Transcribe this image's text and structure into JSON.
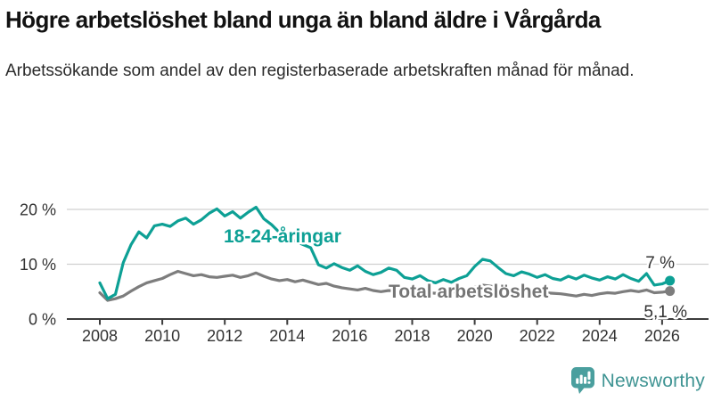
{
  "header": {
    "title": "Högre arbetslöshet bland unga än bland äldre i Vårgårda",
    "subtitle": "Arbetssökande som andel av den registerbaserade arbetskraften månad för månad."
  },
  "colors": {
    "accent_teal": "#0da095",
    "series_total_gray": "#7d7d7d",
    "axis": "#3c3c3c",
    "gridline": "#d0d0d0",
    "tick_label": "#333333",
    "end_label": "#333333",
    "logo_teal": "#4a9f9e",
    "logo_text_teal": "#3f9493",
    "background": "#ffffff"
  },
  "chart_data": {
    "type": "line",
    "title": "Högre arbetslöshet bland unga än bland äldre i Vårgårda",
    "subtitle": "Arbetssökande som andel av den registerbaserade arbetskraften månad för månad.",
    "x_unit": "decimal_year",
    "x": [
      2008.0,
      2008.25,
      2008.5,
      2008.75,
      2009.0,
      2009.25,
      2009.5,
      2009.75,
      2010.0,
      2010.25,
      2010.5,
      2010.75,
      2011.0,
      2011.25,
      2011.5,
      2011.75,
      2012.0,
      2012.25,
      2012.5,
      2012.75,
      2013.0,
      2013.25,
      2013.5,
      2013.75,
      2014.0,
      2014.25,
      2014.5,
      2014.75,
      2015.0,
      2015.25,
      2015.5,
      2015.75,
      2016.0,
      2016.25,
      2016.5,
      2016.75,
      2017.0,
      2017.25,
      2017.5,
      2017.75,
      2018.0,
      2018.25,
      2018.5,
      2018.75,
      2019.0,
      2019.25,
      2019.5,
      2019.75,
      2020.0,
      2020.25,
      2020.5,
      2020.75,
      2021.0,
      2021.25,
      2021.5,
      2021.75,
      2022.0,
      2022.25,
      2022.5,
      2022.75,
      2023.0,
      2023.25,
      2023.5,
      2023.75,
      2024.0,
      2024.25,
      2024.5,
      2024.75,
      2025.0,
      2025.25,
      2025.5,
      2025.75,
      2026.0,
      2026.25
    ],
    "series": [
      {
        "name": "18-24-åringar",
        "color": "#0da095",
        "end_label": "7 %",
        "end_value": 7.0,
        "values": [
          6.6,
          3.7,
          4.5,
          10.3,
          13.6,
          15.9,
          14.8,
          17.0,
          17.3,
          16.9,
          17.9,
          18.4,
          17.3,
          18.1,
          19.3,
          20.1,
          18.8,
          19.6,
          18.4,
          19.5,
          20.4,
          18.3,
          17.2,
          15.8,
          14.8,
          14.2,
          13.6,
          13.0,
          9.9,
          9.3,
          10.1,
          9.4,
          8.9,
          9.7,
          8.7,
          8.1,
          8.5,
          9.3,
          8.9,
          7.6,
          7.3,
          7.9,
          7.0,
          6.6,
          7.2,
          6.7,
          7.4,
          7.9,
          9.6,
          10.9,
          10.6,
          9.4,
          8.3,
          7.9,
          8.6,
          8.2,
          7.6,
          8.1,
          7.4,
          7.1,
          7.8,
          7.3,
          8.0,
          7.5,
          7.1,
          7.7,
          7.3,
          8.1,
          7.4,
          6.9,
          8.3,
          6.2,
          6.4,
          7.0
        ]
      },
      {
        "name": "Total arbetslöshet",
        "color": "#7d7d7d",
        "end_label": "5,1 %",
        "end_value": 5.1,
        "values": [
          4.8,
          3.4,
          3.7,
          4.2,
          5.1,
          5.9,
          6.6,
          7.0,
          7.4,
          8.1,
          8.7,
          8.3,
          7.9,
          8.1,
          7.7,
          7.6,
          7.8,
          8.0,
          7.6,
          7.9,
          8.4,
          7.8,
          7.3,
          7.0,
          7.2,
          6.8,
          7.1,
          6.7,
          6.3,
          6.5,
          6.0,
          5.7,
          5.5,
          5.3,
          5.6,
          5.2,
          5.0,
          5.2,
          5.1,
          4.9,
          5.0,
          4.9,
          4.8,
          4.7,
          4.8,
          4.9,
          5.0,
          5.2,
          5.8,
          6.2,
          6.0,
          5.8,
          5.6,
          5.4,
          5.2,
          5.0,
          4.9,
          4.8,
          4.7,
          4.6,
          4.4,
          4.2,
          4.5,
          4.3,
          4.6,
          4.8,
          4.7,
          5.0,
          5.2,
          5.0,
          5.3,
          4.8,
          4.9,
          5.1
        ]
      }
    ],
    "ylim": [
      0,
      22
    ],
    "yticks": [
      0,
      10,
      20
    ],
    "ytick_labels": [
      "0 %",
      "10 %",
      "20 %"
    ],
    "xticks": [
      2008,
      2010,
      2012,
      2014,
      2016,
      2018,
      2020,
      2022,
      2024,
      2026
    ],
    "xtick_labels": [
      "2008",
      "2010",
      "2012",
      "2014",
      "2016",
      "2018",
      "2020",
      "2022",
      "2024",
      "2026"
    ],
    "grid": "horizontal",
    "legend": "inline-labels"
  },
  "footer": {
    "brand": "Newsworthy",
    "logo_icon": "newsworthy-speech-bubble-barchart-icon"
  }
}
